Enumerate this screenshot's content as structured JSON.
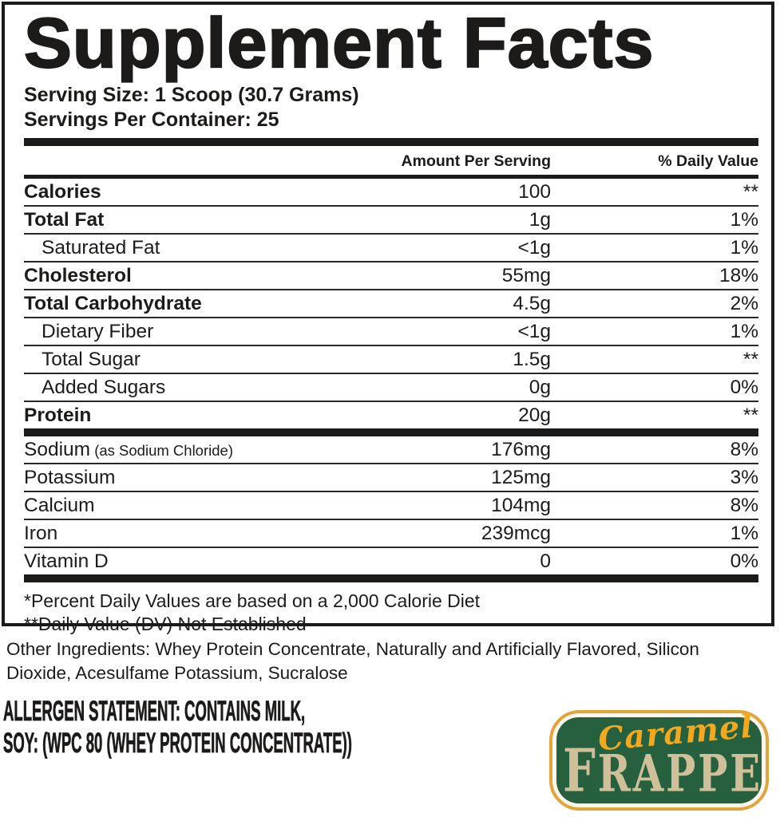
{
  "title": "Supplement Facts",
  "serving": {
    "size": "Serving Size: 1 Scoop (30.7 Grams)",
    "per_container": "Servings Per Container: 25"
  },
  "table": {
    "col_amount": "Amount Per Serving",
    "col_dv": "% Daily Value",
    "main_rows": [
      {
        "label": "Calories",
        "amount": "100",
        "dv": "**",
        "bold": true
      },
      {
        "label": "Total Fat",
        "amount": "1g",
        "dv": "1%",
        "bold": true
      },
      {
        "label": "Saturated Fat",
        "amount": "<1g",
        "dv": "1%",
        "indent": true
      },
      {
        "label": "Cholesterol",
        "amount": "55mg",
        "dv": "18%",
        "bold": true
      },
      {
        "label": "Total Carbohydrate",
        "amount": "4.5g",
        "dv": "2%",
        "bold": true
      },
      {
        "label": "Dietary Fiber",
        "amount": "<1g",
        "dv": "1%",
        "indent": true
      },
      {
        "label": "Total Sugar",
        "amount": "1.5g",
        "dv": "**",
        "indent": true
      },
      {
        "label": "Added Sugars",
        "amount": "0g",
        "dv": "0%",
        "indent": true
      },
      {
        "label": "Protein",
        "amount": "20g",
        "dv": "**",
        "bold": true
      }
    ],
    "mineral_rows": [
      {
        "label": "Sodium",
        "note": "(as Sodium Chloride)",
        "amount": "176mg",
        "dv": "8%"
      },
      {
        "label": "Potassium",
        "amount": "125mg",
        "dv": "3%"
      },
      {
        "label": "Calcium",
        "amount": "104mg",
        "dv": "8%"
      },
      {
        "label": "Iron",
        "amount": "239mcg",
        "dv": "1%"
      },
      {
        "label": "Vitamin D",
        "amount": "0",
        "dv": "0%"
      }
    ],
    "footnotes": [
      "*Percent Daily Values are based on a 2,000 Calorie Diet",
      "**Daily Value (DV) Not Established"
    ]
  },
  "other_ingredients": "Other Ingredients: Whey Protein Concentrate, Naturally and Artificially Flavored, Silicon Dioxide, Acesulfame Potassium, Sucralose",
  "allergen": {
    "line1": "ALLERGEN STATEMENT: CONTAINS MILK,",
    "line2": "SOY: (WPC 80 (WHEY PROTEIN CONCENTRATE))"
  },
  "logo": {
    "top": "Caramel",
    "bottom": "FRAPPE",
    "colors": {
      "green": "#26603e",
      "gold": "#e4a43c",
      "cream": "#fbf7ec",
      "caramel_text": "#f3a81e",
      "frappe_text": "#cfc099"
    }
  }
}
